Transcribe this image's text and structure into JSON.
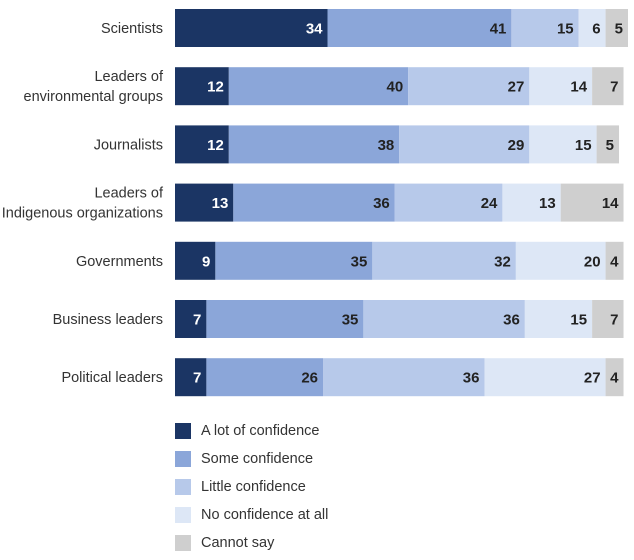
{
  "chart_data": {
    "type": "bar",
    "orientation": "horizontal",
    "stacked": true,
    "categories": [
      [
        "Scientists"
      ],
      [
        "Leaders of",
        "environmental groups"
      ],
      [
        "Journalists"
      ],
      [
        "Leaders of",
        "Indigenous organizations"
      ],
      [
        "Governments"
      ],
      [
        "Business leaders"
      ],
      [
        "Political leaders"
      ]
    ],
    "series": [
      {
        "name": "A lot of confidence",
        "color": "#1b3564",
        "text_color": "#ffffff",
        "values": [
          34,
          12,
          12,
          13,
          9,
          7,
          7
        ]
      },
      {
        "name": "Some confidence",
        "color": "#8ba6d9",
        "text_color": "#222222",
        "values": [
          41,
          40,
          38,
          36,
          35,
          35,
          26
        ]
      },
      {
        "name": "Little confidence",
        "color": "#b7c9ea",
        "text_color": "#222222",
        "values": [
          15,
          27,
          29,
          24,
          32,
          36,
          36
        ]
      },
      {
        "name": "No confidence at all",
        "color": "#dde7f6",
        "text_color": "#222222",
        "values": [
          6,
          14,
          15,
          13,
          20,
          15,
          27
        ]
      },
      {
        "name": "Cannot say",
        "color": "#cfcfcf",
        "text_color": "#222222",
        "values": [
          5,
          7,
          5,
          14,
          4,
          7,
          4
        ]
      }
    ],
    "xlim": [
      0,
      101
    ],
    "grid": false,
    "legend_position": "bottom"
  }
}
